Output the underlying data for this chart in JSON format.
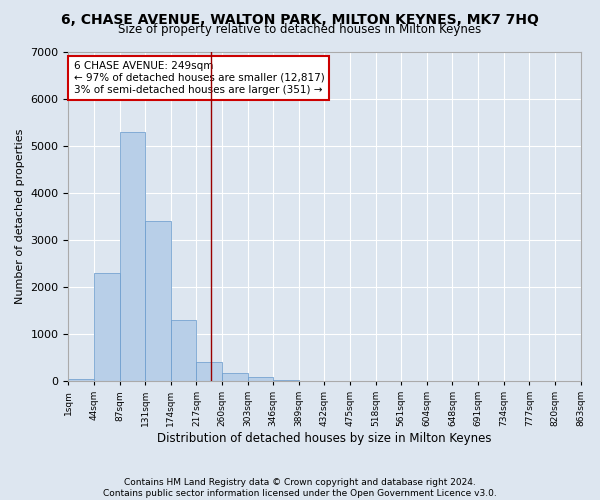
{
  "title": "6, CHASE AVENUE, WALTON PARK, MILTON KEYNES, MK7 7HQ",
  "subtitle": "Size of property relative to detached houses in Milton Keynes",
  "xlabel": "Distribution of detached houses by size in Milton Keynes",
  "ylabel": "Number of detached properties",
  "bar_values": [
    50,
    2300,
    5300,
    3400,
    1300,
    400,
    170,
    80,
    30,
    0,
    0,
    0,
    0,
    0,
    0,
    0,
    0,
    0,
    0,
    0
  ],
  "bar_labels": [
    "1sqm",
    "44sqm",
    "87sqm",
    "131sqm",
    "174sqm",
    "217sqm",
    "260sqm",
    "303sqm",
    "346sqm",
    "389sqm",
    "432sqm",
    "475sqm",
    "518sqm",
    "561sqm",
    "604sqm",
    "648sqm",
    "691sqm",
    "734sqm",
    "777sqm",
    "820sqm",
    "863sqm"
  ],
  "bar_color": "#b8cfe8",
  "bar_edge_color": "#6699cc",
  "background_color": "#dde6f0",
  "grid_color": "#ffffff",
  "vline_x": 5.57,
  "vline_color": "#990000",
  "annotation_text": "6 CHASE AVENUE: 249sqm\n← 97% of detached houses are smaller (12,817)\n3% of semi-detached houses are larger (351) →",
  "annotation_box_color": "#ffffff",
  "annotation_box_edge": "#cc0000",
  "ylim": [
    0,
    7000
  ],
  "yticks": [
    0,
    1000,
    2000,
    3000,
    4000,
    5000,
    6000,
    7000
  ],
  "footer": "Contains HM Land Registry data © Crown copyright and database right 2024.\nContains public sector information licensed under the Open Government Licence v3.0.",
  "figsize": [
    6.0,
    5.0
  ],
  "dpi": 100
}
